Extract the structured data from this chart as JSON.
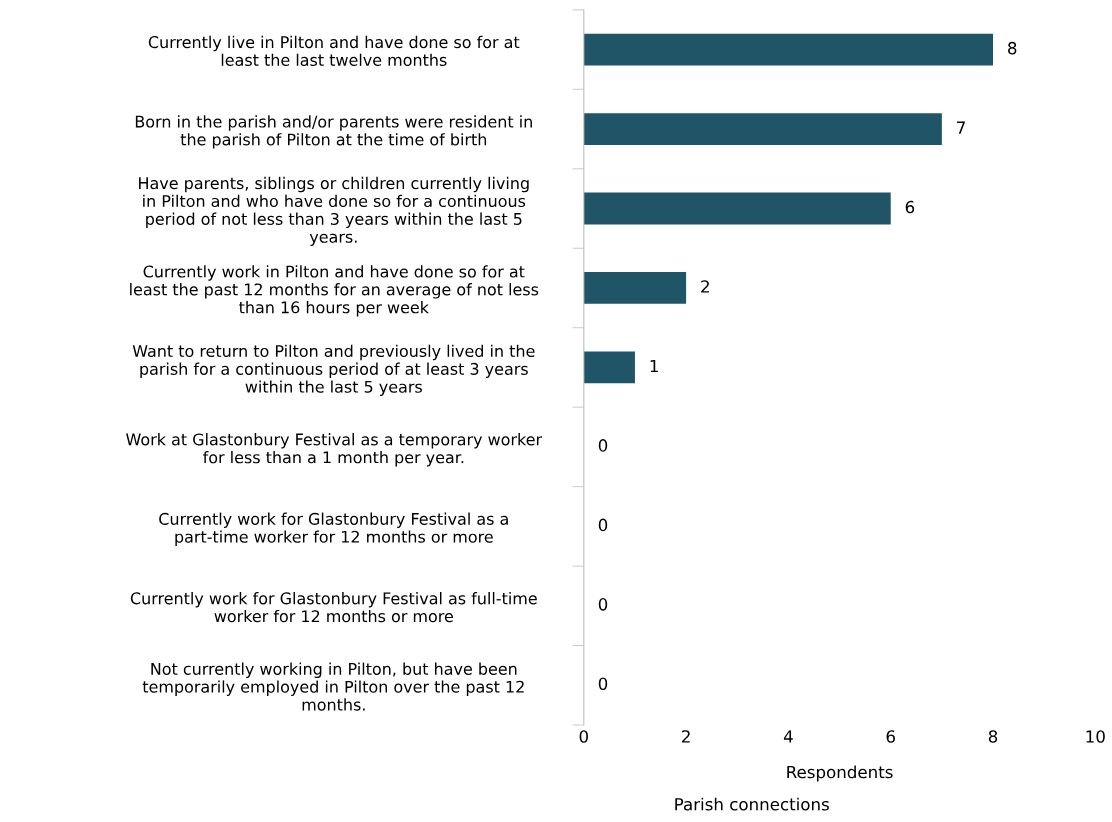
{
  "chart_data": {
    "type": "bar",
    "orientation": "horizontal",
    "title": "Parish connections",
    "xlabel": "Respondents",
    "categories": [
      "Currently live in Pilton and have done so for at least the last twelve months",
      "Born in the parish and/or parents were resident in the parish of Pilton at the time of birth",
      "Have parents, siblings or children currently living in Pilton and who have done so for a continuous period of not less than 3 years within the last 5 years.",
      "Currently work in Pilton and have done so for at least the past 12 months for an average of not less than 16 hours per week",
      "Want to return to Pilton and previously lived in the parish for a continuous period of at least 3 years within the last 5 years",
      "Work at Glastonbury Festival as a temporary worker for less than a 1 month per year.",
      "Currently work for Glastonbury Festival as a part-time worker for 12 months or more",
      "Currently work for Glastonbury Festival as full-time worker for 12 months or more",
      "Not currently working in Pilton, but have been temporarily employed in Pilton over the past 12 months."
    ],
    "values": [
      8,
      7,
      6,
      2,
      1,
      0,
      0,
      0,
      0
    ],
    "color": "#1f5566",
    "xlim": [
      0,
      10
    ],
    "xticks": [
      0,
      2,
      4,
      6,
      8,
      10
    ],
    "data_labels": true,
    "grid": false,
    "legend": false
  }
}
